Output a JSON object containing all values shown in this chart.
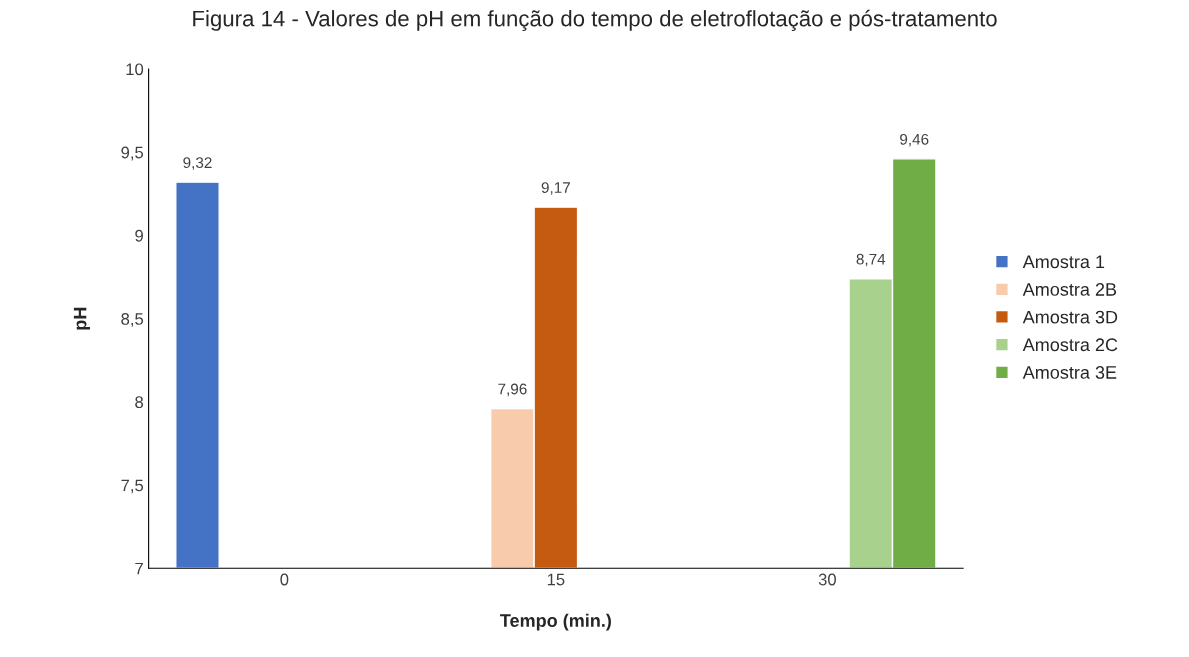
{
  "chart_data": {
    "type": "bar",
    "title": "Figura 14 - Valores de pH em função do tempo de eletroflotação e pós-tratamento",
    "xlabel": "Tempo (min.)",
    "ylabel": "pH",
    "categories": [
      "0",
      "15",
      "30"
    ],
    "series": [
      {
        "name": "Amostra 1",
        "color": "#4472c4",
        "values": [
          9.32,
          null,
          null
        ],
        "value_labels": [
          "9,32",
          null,
          null
        ]
      },
      {
        "name": "Amostra 2B",
        "color": "#f8cbad",
        "values": [
          null,
          7.96,
          null
        ],
        "value_labels": [
          null,
          "7,96",
          null
        ]
      },
      {
        "name": "Amostra 3D",
        "color": "#c55a11",
        "values": [
          null,
          9.17,
          null
        ],
        "value_labels": [
          null,
          "9,17",
          null
        ]
      },
      {
        "name": "Amostra 2C",
        "color": "#a9d18e",
        "values": [
          null,
          null,
          8.74
        ],
        "value_labels": [
          null,
          null,
          "8,74"
        ]
      },
      {
        "name": "Amostra 3E",
        "color": "#70ad47",
        "values": [
          null,
          null,
          9.46
        ],
        "value_labels": [
          null,
          null,
          "9,46"
        ]
      }
    ],
    "ylim": [
      7,
      10
    ],
    "yticks": [
      7,
      {
        "value": 7.5,
        "label": "7,5"
      },
      8,
      {
        "value": 8.5,
        "label": "8,5"
      },
      9,
      {
        "value": 9.5,
        "label": "9,5"
      },
      10
    ],
    "grid": false,
    "legend": "right"
  }
}
